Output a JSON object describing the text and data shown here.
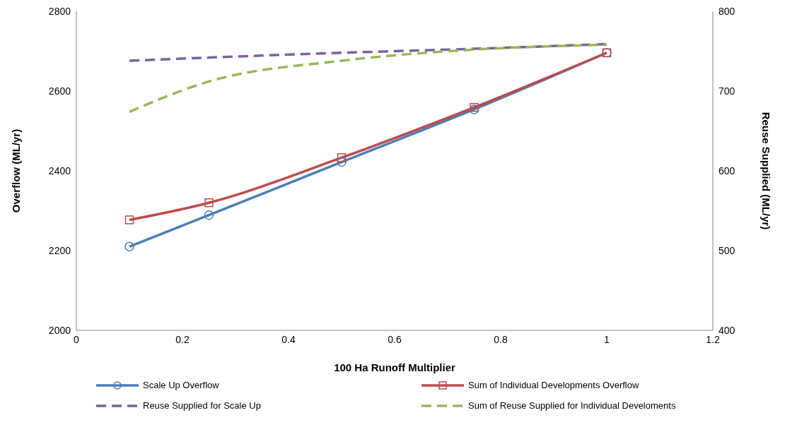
{
  "chart_data": {
    "type": "line",
    "xlabel": "100 Ha Runoff  Multiplier",
    "ylabel": "Overflow  (ML/yr)",
    "y2label": "Reuse Supplied  (ML/yr)",
    "x": [
      0.1,
      0.25,
      0.5,
      0.75,
      1
    ],
    "xlim": [
      0,
      1.2
    ],
    "xticks": [
      0,
      0.2,
      0.4,
      0.6,
      0.8,
      1,
      1.2
    ],
    "ylim": [
      2000,
      2800
    ],
    "yticks": [
      2000,
      2200,
      2400,
      2600,
      2800
    ],
    "y2lim": [
      400,
      800
    ],
    "y2ticks": [
      400,
      500,
      600,
      700,
      800
    ],
    "legend": "bottom",
    "series": [
      {
        "name": "Scale Up Overflow",
        "color": "#4a7ebb",
        "values": [
          2210,
          2289,
          2422,
          2554,
          2696
        ],
        "marker": "circle",
        "line_style": "solid"
      },
      {
        "name": "Sum of Individual Developments Overflow",
        "color": "#be4b48",
        "values": [
          2277,
          2320,
          2433,
          2559,
          2696
        ],
        "marker": "square",
        "line_style": "solid"
      },
      {
        "name": "Reuse Supplied for Scale Up",
        "color": "#7d60a0",
        "values": [
          738,
          742,
          748,
          753,
          759
        ],
        "axis": "y2",
        "marker": "none",
        "line_style": "dashed"
      },
      {
        "name": "Sum of Reuse Supplied for Individual Develoments",
        "color": "#98b954",
        "values": [
          674,
          712,
          738,
          752,
          758
        ],
        "axis": "y2",
        "marker": "none",
        "line_style": "dashed"
      }
    ]
  }
}
